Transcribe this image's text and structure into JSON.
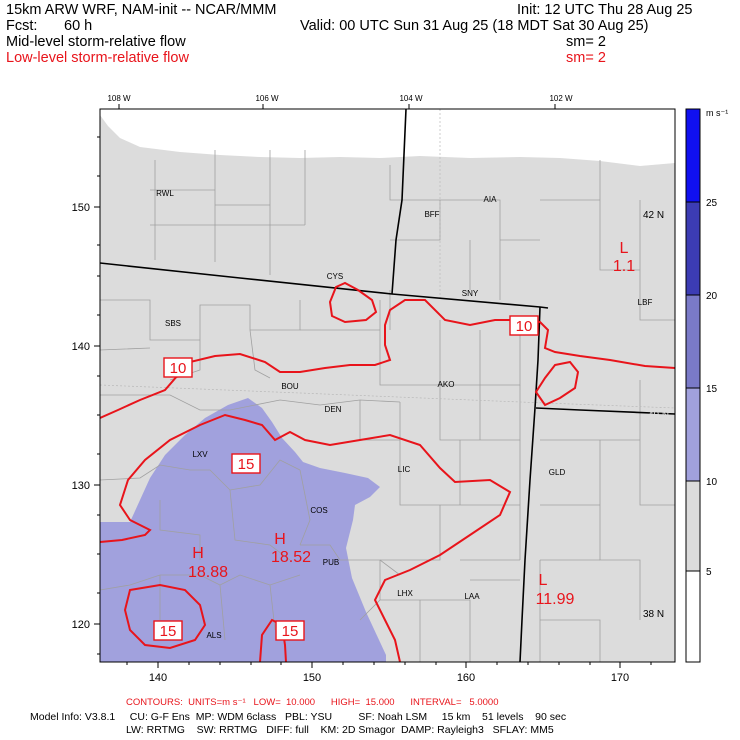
{
  "header": {
    "model": "15km ARW WRF, NAM-init -- NCAR/MMM",
    "init": "Init: 12 UTC Thu 28 Aug 25",
    "fcst_label": "Fcst:",
    "fcst_value": "60 h",
    "valid": "Valid: 00 UTC Sun 31 Aug 25 (18 MDT Sat 30 Aug 25)",
    "field1": "Mid-level storm-relative flow",
    "field1_sm": "sm= 2",
    "field2": "Low-level storm-relative flow",
    "field2_sm": "sm= 2"
  },
  "colors": {
    "fill_light": "#dcdcdc",
    "fill_lavender": "#a1a1dd",
    "contour_red": "#e8141b",
    "state_border": "#000000",
    "county_line": "#a0a0a0"
  },
  "top_axis": [
    "108 W",
    "106 W",
    "104 W",
    "102 W"
  ],
  "left_axis": [
    "150",
    "140",
    "130",
    "120"
  ],
  "bottom_axis": [
    "140",
    "150",
    "160",
    "170"
  ],
  "right_lat": [
    {
      "label": "42 N",
      "color": "#000000"
    },
    {
      "label": "40 N",
      "color": "#dcdcdc"
    },
    {
      "label": "38 N",
      "color": "#000000"
    }
  ],
  "cities": [
    "RWL",
    "BFF",
    "AIA",
    "CYS",
    "SNY",
    "LBF",
    "SBS",
    "BOU",
    "DEN",
    "AKO",
    "LXV",
    "LIC",
    "GLD",
    "COS",
    "PUB",
    "LHX",
    "LAA",
    "ALS"
  ],
  "contour_labels": [
    "10",
    "10",
    "15",
    "15",
    "15"
  ],
  "extrema": [
    {
      "type": "L",
      "value": "1.1"
    },
    {
      "type": "H",
      "value": "18.88"
    },
    {
      "type": "H",
      "value": "18.52"
    },
    {
      "type": "L",
      "value": "11.99"
    }
  ],
  "colorbar": {
    "unit": "m s⁻¹",
    "levels": [
      {
        "label": "25",
        "color": "#1010f0"
      },
      {
        "label": "20",
        "color": "#3c3cb4"
      },
      {
        "label": "15",
        "color": "#7a7ac8"
      },
      {
        "label": "10",
        "color": "#a1a1dd"
      },
      {
        "label": "5",
        "color": "#dcdcdc"
      }
    ],
    "bottom_color": "#ffffff"
  },
  "footer": {
    "contours": "CONTOURS:  UNITS=m s⁻¹   LOW=  10.000      HIGH=  15.000      INTERVAL=   5.0000",
    "model_info_1": "Model Info: V3.8.1     CU: G-F Ens  MP: WDM 6class   PBL: YSU         SF: Noah LSM     15 km    51 levels    90 sec",
    "model_info_2": "LW: RRTMG    SW: RRTMG   DIFF: full    KM: 2D Smagor  DAMP: Rayleigh3   SFLAY: MM5"
  }
}
